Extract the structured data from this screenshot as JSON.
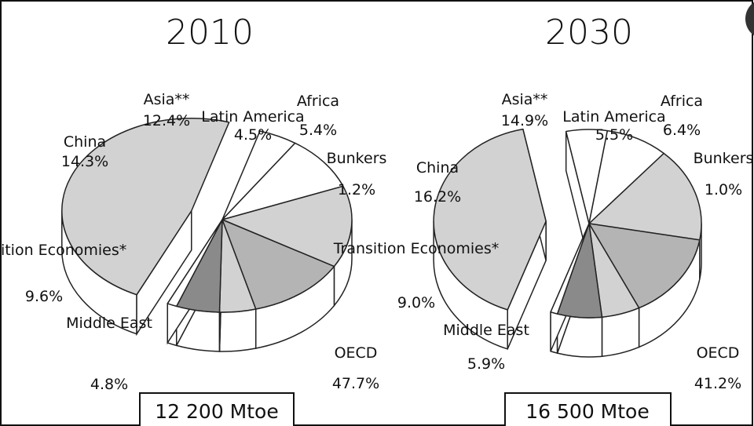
{
  "colors": {
    "light": "#d2d2d2",
    "medium": "#b4b4b4",
    "dark": "#8a8a8a",
    "white": "#ffffff",
    "outline": "#222222"
  },
  "chart_data": [
    {
      "type": "pie",
      "title": "2010",
      "total": "12 200 Mtoe",
      "slices": [
        {
          "name": "OECD",
          "value": 47.7,
          "label": "47.7%"
        },
        {
          "name": "Middle East",
          "value": 4.8,
          "label": "4.8%"
        },
        {
          "name": "Transition Economies*",
          "value": 9.6,
          "label": "9.6%"
        },
        {
          "name": "China",
          "value": 14.3,
          "label": "14.3%"
        },
        {
          "name": "Asia**",
          "value": 12.4,
          "label": "12.4%"
        },
        {
          "name": "Latin America",
          "value": 4.5,
          "label": "4.5%"
        },
        {
          "name": "Africa",
          "value": 5.4,
          "label": "5.4%"
        },
        {
          "name": "Bunkers",
          "value": 1.2,
          "label": "1.2%"
        }
      ]
    },
    {
      "type": "pie",
      "title": "2030",
      "total": "16 500 Mtoe",
      "slices": [
        {
          "name": "OECD",
          "value": 41.2,
          "label": "41.2%"
        },
        {
          "name": "Middle East",
          "value": 5.9,
          "label": "5.9%"
        },
        {
          "name": "Transition Economies*",
          "value": 9.0,
          "label": "9.0%"
        },
        {
          "name": "China",
          "value": 16.2,
          "label": "16.2%"
        },
        {
          "name": "Asia**",
          "value": 14.9,
          "label": "14.9%"
        },
        {
          "name": "Latin America",
          "value": 5.5,
          "label": "5.5%"
        },
        {
          "name": "Africa",
          "value": 6.4,
          "label": "6.4%"
        },
        {
          "name": "Bunkers",
          "value": 1.0,
          "label": "1.0%"
        }
      ]
    }
  ]
}
